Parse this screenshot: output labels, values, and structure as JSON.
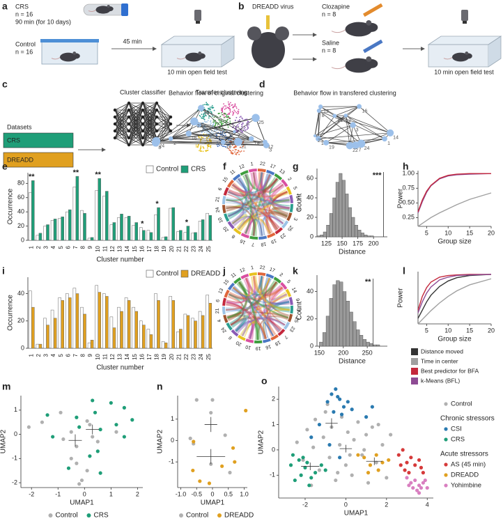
{
  "panels": {
    "a": {
      "label": "a",
      "crs": "CRS",
      "crs_n": "n = 16",
      "crs_time": "90 min (for 10 days)",
      "control": "Control",
      "control_n": "n = 16",
      "delay": "45 min",
      "test": "10 min open field test"
    },
    "b": {
      "label": "b",
      "virus": "DREADD virus",
      "clozapine": "Clozapine",
      "clozapine_n": "n = 8",
      "saline": "Saline",
      "saline_n": "n = 8",
      "test": "10 min open field test"
    },
    "c": {
      "label": "c",
      "datasets": "Datasets",
      "crs": "CRS",
      "dreadd": "DREADD",
      "classifier": "Cluster classifier",
      "transfer": "Transfer clustering"
    },
    "d": {
      "label": "d",
      "left_title": "Behavior flow in original clustering",
      "right_title": "Behavior flow in transfered clustering",
      "left_nodes": [
        "12",
        "2",
        "24",
        "16",
        "1",
        "3",
        "18",
        "7",
        "25",
        "21",
        "22",
        "8",
        "14",
        "19"
      ],
      "right_nodes": [
        "12",
        "2",
        "24",
        "16",
        "1",
        "3",
        "18",
        "7",
        "25",
        "21",
        "22",
        "8",
        "14",
        "19"
      ]
    },
    "f": {
      "label": "f",
      "labels": [
        "22",
        "17",
        "13",
        "2",
        "5",
        "14",
        "9",
        "3",
        "25",
        "23",
        "19",
        "18",
        "7",
        "16",
        "8",
        "20",
        "10",
        "24",
        "21",
        "6",
        "15",
        "11",
        "12",
        "1"
      ]
    },
    "j": {
      "label": "j",
      "labels": [
        "22",
        "17",
        "2",
        "5",
        "14",
        "9",
        "3",
        "25",
        "23",
        "7",
        "18",
        "16",
        "19",
        "10",
        "20",
        "8",
        "24",
        "4",
        "21",
        "6",
        "13",
        "15",
        "11",
        "12",
        "1"
      ]
    }
  },
  "chart_data": [
    {
      "panel": "e",
      "type": "bar",
      "categories": [
        "1",
        "2",
        "3",
        "4",
        "5",
        "6",
        "7",
        "8",
        "9",
        "10",
        "11",
        "12",
        "13",
        "14",
        "15",
        "16",
        "17",
        "18",
        "19",
        "20",
        "21",
        "22",
        "23",
        "24",
        "25"
      ],
      "series": [
        {
          "name": "Control",
          "color": "#ffffff",
          "values": [
            67,
            7,
            20,
            28,
            31,
            40,
            75,
            42,
            3,
            70,
            62,
            22,
            32,
            32,
            21,
            18,
            14,
            36,
            4,
            45,
            12,
            11,
            10,
            27,
            38
          ]
        },
        {
          "name": "CRS",
          "color": "#1f9e78",
          "values": [
            84,
            10,
            22,
            30,
            33,
            43,
            90,
            38,
            4,
            87,
            69,
            25,
            37,
            34,
            25,
            14,
            11,
            46,
            5,
            46,
            14,
            20,
            11,
            29,
            35
          ]
        }
      ],
      "ylim": [
        0,
        95
      ],
      "yticks": [
        0,
        20,
        40,
        60,
        80
      ],
      "ylabel": "Occurrence",
      "xlabel": "Cluster number",
      "legend": "top-right",
      "annotations": [
        {
          "text": "**",
          "category": "1"
        },
        {
          "text": "**",
          "category": "7"
        },
        {
          "text": "**",
          "category": "10"
        },
        {
          "text": "*",
          "category": "16"
        },
        {
          "text": "*",
          "category": "18"
        },
        {
          "text": "*",
          "category": "22"
        }
      ]
    },
    {
      "panel": "g",
      "type": "histogram",
      "bins": [
        110,
        115,
        120,
        125,
        130,
        135,
        140,
        145,
        150,
        155,
        160,
        165,
        170,
        175,
        180,
        185,
        190,
        195,
        200,
        205,
        210
      ],
      "counts": [
        1,
        2,
        5,
        12,
        24,
        40,
        56,
        65,
        58,
        44,
        30,
        20,
        12,
        7,
        4,
        2,
        1,
        1,
        0,
        0
      ],
      "color": "#9a9a9a",
      "xlim": [
        110,
        222
      ],
      "xticks": [
        125,
        150,
        175,
        200
      ],
      "ylim": [
        0,
        70
      ],
      "yticks": [
        0,
        20,
        40,
        60
      ],
      "xlabel": "Distance",
      "ylabel": "Count",
      "marker": {
        "value": 216,
        "color": "#e8302e",
        "label": "***"
      }
    },
    {
      "panel": "h",
      "type": "line",
      "x": [
        3,
        4,
        5,
        6,
        8,
        10,
        12,
        15,
        20
      ],
      "series": [
        {
          "color": "#a0a0a0",
          "values": [
            0.1,
            0.15,
            0.2,
            0.25,
            0.33,
            0.4,
            0.47,
            0.56,
            0.67
          ]
        },
        {
          "color": "#8e4b94",
          "values": [
            0.33,
            0.52,
            0.68,
            0.79,
            0.91,
            0.96,
            0.98,
            0.99,
            1.0
          ]
        },
        {
          "color": "#c4283c",
          "values": [
            0.35,
            0.55,
            0.7,
            0.8,
            0.92,
            0.97,
            0.99,
            1.0,
            1.0
          ]
        }
      ],
      "xlim": [
        3,
        20
      ],
      "xticks": [
        5,
        10,
        15,
        20
      ],
      "ylim": [
        0.1,
        1.05
      ],
      "yticks": [
        {
          "value": 0.25,
          "label": "0.25"
        },
        {
          "value": 0.5,
          "label": "0.50"
        },
        {
          "value": 0.75,
          "label": "0.75"
        },
        {
          "value": 1,
          "label": "1.00"
        }
      ],
      "xlabel": "Group size",
      "ylabel": "Power"
    },
    {
      "panel": "i",
      "type": "bar",
      "categories": [
        "1",
        "2",
        "3",
        "4",
        "5",
        "6",
        "7",
        "8",
        "9",
        "10",
        "11",
        "12",
        "13",
        "14",
        "15",
        "16",
        "17",
        "18",
        "19",
        "20",
        "21",
        "22",
        "23",
        "24",
        "25"
      ],
      "series": [
        {
          "name": "Control",
          "color": "#ffffff",
          "values": [
            42,
            3,
            22,
            28,
            37,
            40,
            44,
            30,
            4,
            46,
            40,
            23,
            30,
            37,
            30,
            20,
            14,
            40,
            5,
            38,
            12,
            25,
            22,
            27,
            39
          ]
        },
        {
          "name": "DREADD",
          "color": "#e0a020",
          "values": [
            30,
            3,
            17,
            22,
            35,
            37,
            40,
            25,
            6,
            41,
            38,
            15,
            27,
            35,
            27,
            17,
            10,
            35,
            4,
            35,
            14,
            24,
            20,
            24,
            33
          ]
        }
      ],
      "ylim": [
        0,
        52
      ],
      "yticks": [
        0,
        20,
        40
      ],
      "ylabel": "Occurrence",
      "xlabel": "Cluster number",
      "legend": "top-right",
      "annotations": []
    },
    {
      "panel": "k",
      "type": "histogram",
      "bins": [
        150,
        157,
        164,
        171,
        178,
        185,
        192,
        199,
        206,
        213,
        220,
        227,
        234,
        241,
        248,
        255,
        262,
        269,
        276,
        283,
        290
      ],
      "counts": [
        3,
        10,
        22,
        35,
        45,
        48,
        47,
        40,
        33,
        25,
        18,
        12,
        8,
        5,
        3,
        2,
        1,
        1,
        0,
        0
      ],
      "color": "#9a9a9a",
      "xlim": [
        145,
        292
      ],
      "xticks": [
        150,
        200,
        250
      ],
      "ylim": [
        0,
        52
      ],
      "yticks": [
        0,
        20,
        40
      ],
      "xlabel": "Distance",
      "ylabel": "Count",
      "marker": {
        "value": 262,
        "color": "#e8302e",
        "label": "**"
      }
    },
    {
      "panel": "l",
      "type": "line",
      "x": [
        3,
        4,
        5,
        6,
        8,
        10,
        12,
        15,
        20
      ],
      "series": [
        {
          "name": "Distance moved",
          "color": "#333333",
          "values": [
            0.2,
            0.35,
            0.5,
            0.62,
            0.78,
            0.88,
            0.94,
            0.98,
            1.0
          ]
        },
        {
          "name": "Time in center",
          "color": "#a0a0a0",
          "values": [
            0.1,
            0.18,
            0.26,
            0.34,
            0.48,
            0.6,
            0.7,
            0.81,
            0.92
          ]
        },
        {
          "name": "Best predictor for BFA",
          "color": "#c4283c",
          "values": [
            0.35,
            0.6,
            0.76,
            0.86,
            0.95,
            0.98,
            0.99,
            1.0,
            1.0
          ]
        },
        {
          "name": "k-Means (BFL)",
          "color": "#8e4b94",
          "values": [
            0.3,
            0.5,
            0.66,
            0.77,
            0.9,
            0.95,
            0.98,
            0.99,
            1.0
          ]
        }
      ],
      "xlim": [
        3,
        20
      ],
      "xticks": [
        5,
        10,
        15,
        20
      ],
      "ylim": [
        0.1,
        1.05
      ],
      "xlabel": "Group size",
      "ylabel": "Power",
      "legend": "below"
    },
    {
      "panel": "m",
      "type": "scatter",
      "xlim": [
        -2.4,
        2.2
      ],
      "ylim": [
        -2.2,
        1.6
      ],
      "xticks": [
        -2,
        -1,
        0,
        1,
        2
      ],
      "yticks": [
        -2,
        -1,
        0,
        1
      ],
      "xlabel": "UMAP1",
      "ylabel": "UMAP2",
      "legend": "bottom",
      "series": [
        {
          "name": "Control",
          "color": "#b0b0b0",
          "x": [
            -2.1,
            -1.6,
            -0.9,
            -0.5,
            0.1,
            0.2,
            0.5,
            -0.3,
            -0.5,
            -0.3,
            0.1,
            -0.1,
            -0.2,
            0.3,
            -0.8,
            1.2
          ],
          "y": [
            0.3,
            0.5,
            0.9,
            0.1,
            0.55,
            0.4,
            -0.3,
            -0.5,
            -1.0,
            -1.2,
            -1.5,
            -1.9,
            -2.05,
            -0.1,
            -0.2,
            0.1
          ],
          "mean": {
            "x": -0.35,
            "y": -0.25,
            "xerr": 0.25,
            "yerr": 0.25
          }
        },
        {
          "name": "CRS",
          "color": "#1f9e78",
          "x": [
            -1.4,
            0.3,
            1.0,
            1.5,
            1.8,
            1.2,
            0.6,
            -0.3,
            -1.2,
            0.5,
            0.2,
            -0.6,
            0.6,
            1.5,
            0.4,
            -0.2
          ],
          "y": [
            0.8,
            1.4,
            1.3,
            1.1,
            0.6,
            0.4,
            0.2,
            0.7,
            -0.1,
            -0.7,
            -0.9,
            -1.4,
            -1.6,
            -0.1,
            0.9,
            0.3
          ],
          "mean": {
            "x": 0.3,
            "y": 0.2,
            "xerr": 0.25,
            "yerr": 0.2
          }
        }
      ]
    },
    {
      "panel": "n",
      "type": "scatter",
      "xlim": [
        -1.1,
        1.1
      ],
      "ylim": [
        -2.2,
        2.1
      ],
      "xticks": [
        {
          "value": -1,
          "label": "-1.0"
        },
        -0.5,
        0,
        0.5,
        {
          "value": 1,
          "label": "1.0"
        }
      ],
      "yticks": [
        -1,
        0,
        1
      ],
      "xlabel": "UMAP1",
      "ylabel": "UMAP2",
      "legend": "bottom",
      "series": [
        {
          "name": "Control",
          "color": "#b0b0b0",
          "x": [
            -0.5,
            0,
            -0.05,
            -0.7,
            0.4,
            -0.05,
            0.55,
            -0.6
          ],
          "y": [
            1.9,
            1.9,
            1.3,
            0.1,
            0.25,
            -1.1,
            -1.5,
            -0.15
          ],
          "mean": {
            "x": -0.05,
            "y": 0.75,
            "xerr": 0.2,
            "yerr": 0.35
          }
        },
        {
          "name": "DREADD",
          "color": "#e0a020",
          "x": [
            -0.6,
            -0.62,
            0.65,
            0.7,
            1.05,
            -0.4,
            0.3,
            -0.1
          ],
          "y": [
            -0.05,
            -1.4,
            -0.35,
            -1.0,
            1.4,
            -1.9,
            -1.2,
            -2.0
          ],
          "mean": {
            "x": -0.05,
            "y": -0.75,
            "xerr": 0.45,
            "yerr": 0.35
          }
        }
      ]
    },
    {
      "panel": "o",
      "type": "scatter",
      "xlim": [
        -3.3,
        4.3
      ],
      "ylim": [
        -1.9,
        2.5
      ],
      "xticks": [
        -2,
        0,
        2,
        4
      ],
      "yticks": [
        -1,
        0,
        1,
        2
      ],
      "xlabel": "UMAP1",
      "ylabel": "UMAP2",
      "legend": "right",
      "legend_headings": [
        {
          "text": "Chronic stressors",
          "before": "CSI"
        },
        {
          "text": "Acute stressors",
          "before": "AS (45 min)"
        }
      ],
      "series": [
        {
          "name": "Control",
          "color": "#b0b0b0",
          "x": [
            -2.4,
            -2.1,
            -1.9,
            -1.6,
            -1.5,
            -1.3,
            -1.1,
            -1.0,
            -0.8,
            -0.7,
            -0.5,
            -0.3,
            -0.2,
            0.0,
            0.1,
            0.3,
            0.4,
            0.6,
            0.8,
            1.0,
            1.1,
            1.3,
            1.5,
            1.8,
            2.0,
            2.2,
            -1.7,
            -0.9,
            0.2,
            0.9,
            -0.4,
            1.6
          ],
          "y": [
            0.3,
            -0.4,
            0.8,
            0.1,
            1.2,
            -0.8,
            0.5,
            1.5,
            -0.3,
            0.9,
            -1.2,
            0.2,
            1.3,
            -0.6,
            0.7,
            -1.0,
            0.4,
            1.1,
            -0.2,
            0.6,
            -1.3,
            0.9,
            -0.5,
            0.2,
            -1.1,
            0.6,
            -1.4,
            1.8,
            -0.2,
            0.0,
            -0.9,
            1.0
          ],
          "mean": {
            "x": 0.0,
            "y": 0.05,
            "xerr": 0.3,
            "yerr": 0.15
          }
        },
        {
          "name": "CSI",
          "color": "#2a7ab0",
          "x": [
            -0.9,
            -0.7,
            -0.5,
            -0.3,
            -0.1,
            0.1,
            -0.6,
            -0.2,
            -0.4,
            0.3,
            -1.3,
            -1.7,
            1.0,
            1.3,
            -0.8,
            -0.3
          ],
          "y": [
            1.9,
            2.2,
            2.4,
            2.0,
            1.7,
            1.9,
            1.5,
            1.4,
            2.1,
            1.6,
            1.0,
            0.5,
            1.3,
            1.7,
            0.2,
            -0.3
          ],
          "mean": {
            "x": -0.7,
            "y": 1.05,
            "xerr": 0.3,
            "yerr": 0.2
          }
        },
        {
          "name": "CRS",
          "color": "#1f9e78",
          "x": [
            -2.7,
            -2.5,
            -2.3,
            -2.2,
            -2.0,
            -1.8,
            -1.9,
            -1.5,
            -1.2,
            -2.6,
            -2.1,
            -1.7,
            -1.0
          ],
          "y": [
            -0.6,
            -1.2,
            -0.4,
            -1.0,
            -0.7,
            -1.4,
            -0.5,
            -0.9,
            -0.6,
            -0.2,
            -0.3,
            -1.1,
            -0.8
          ],
          "mean": {
            "x": -1.75,
            "y": -0.65,
            "xerr": 0.45,
            "yerr": 0.15
          }
        },
        {
          "name": "AS (45 min)",
          "color": "#d63a3a",
          "x": [
            2.6,
            2.8,
            3.0,
            3.2,
            3.4,
            3.6,
            2.9,
            3.1,
            3.7,
            2.7,
            3.8
          ],
          "y": [
            -0.2,
            0.0,
            -0.5,
            -0.3,
            -0.6,
            -0.4,
            -0.8,
            -0.9,
            -0.7,
            -0.6,
            -0.9
          ]
        },
        {
          "name": "DREADD",
          "color": "#e0a020",
          "x": [
            0.9,
            1.2,
            1.5,
            1.8,
            1.1,
            1.6,
            2.1,
            0.6
          ],
          "y": [
            -0.3,
            -0.6,
            -0.2,
            -0.5,
            -0.9,
            -0.8,
            -0.4,
            -0.2
          ],
          "mean": {
            "x": 1.4,
            "y": -0.45,
            "xerr": 0.4,
            "yerr": 0.15
          }
        },
        {
          "name": "Yohimbine",
          "color": "#d97fc0",
          "x": [
            3.0,
            3.2,
            3.4,
            3.6,
            3.8,
            3.3,
            3.5,
            3.7,
            3.9,
            3.1,
            3.6,
            4.0
          ],
          "y": [
            -1.1,
            -1.3,
            -1.2,
            -1.4,
            -1.3,
            -1.5,
            -1.6,
            -1.5,
            -1.2,
            -1.4,
            -1.7,
            -1.5
          ]
        }
      ]
    }
  ]
}
